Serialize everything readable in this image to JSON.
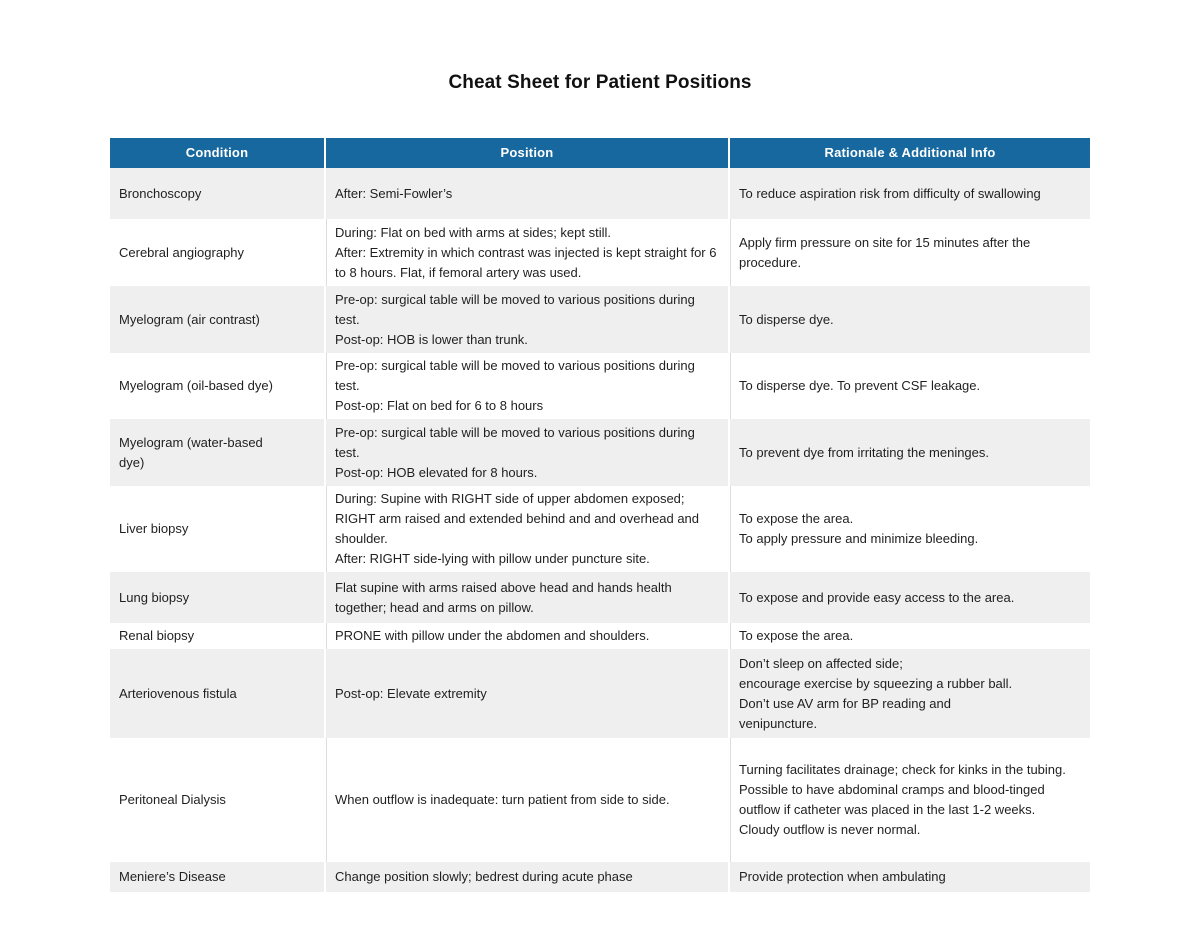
{
  "page": {
    "title": "Cheat Sheet for Patient Positions"
  },
  "colors": {
    "header_bg": "#17689f",
    "header_text": "#ffffff",
    "row_alt_bg": "#efefef",
    "row_bg": "#ffffff",
    "body_text": "#1f1f1f"
  },
  "table": {
    "columns": [
      "Condition",
      "Position",
      "Rationale & Additional Info"
    ],
    "rows": [
      {
        "condition": "Bronchoscopy",
        "position": [
          "After: Semi-Fowler’s"
        ],
        "rationale": [
          "To reduce aspiration risk from difficulty of swallowing"
        ]
      },
      {
        "condition": "Cerebral angiography",
        "position": [
          "During: Flat on bed with arms at sides; kept still.",
          "After: Extremity in which contrast was injected is kept straight for 6 to 8 hours. Flat, if femoral artery was used."
        ],
        "rationale": [
          "Apply firm pressure on site for 15 minutes after the procedure."
        ]
      },
      {
        "condition": "Myelogram (air contrast)",
        "position": [
          "Pre-op: surgical table will be moved to various positions during test.",
          "Post-op: HOB is lower than trunk."
        ],
        "rationale": [
          "To disperse dye."
        ]
      },
      {
        "condition": "Myelogram (oil-based dye)",
        "position": [
          "Pre-op: surgical table will be moved to various positions during test.",
          "Post-op: Flat on bed for 6 to 8 hours"
        ],
        "rationale": [
          "To disperse dye. To prevent CSF leakage."
        ]
      },
      {
        "condition": "Myelogram (water-based dye)",
        "position": [
          "Pre-op: surgical table will be moved to various positions during test.",
          "Post-op: HOB elevated for 8 hours."
        ],
        "rationale": [
          "To prevent dye from irritating the meninges."
        ]
      },
      {
        "condition": "Liver biopsy",
        "position": [
          "During: Supine with RIGHT side of upper abdomen exposed; RIGHT arm raised and extended behind and and overhead and shoulder.",
          "After: RIGHT side-lying with pillow under puncture site."
        ],
        "rationale": [
          "To expose the area.",
          "To apply pressure and minimize bleeding."
        ]
      },
      {
        "condition": "Lung biopsy",
        "position": [
          "Flat supine with arms raised above head and hands health together; head and arms on pillow."
        ],
        "rationale": [
          "To expose and provide easy access to the area."
        ]
      },
      {
        "condition": "Renal biopsy",
        "position": [
          "PRONE with pillow under the abdomen and shoulders."
        ],
        "rationale": [
          "To expose the area."
        ]
      },
      {
        "condition": "Arteriovenous fistula",
        "position": [
          "Post-op: Elevate extremity"
        ],
        "rationale": [
          "Don’t sleep on affected side;",
          "encourage exercise by squeezing a rubber ball.",
          "Don’t use AV arm for BP reading and",
          "venipuncture."
        ]
      },
      {
        "condition": "Peritoneal Dialysis",
        "position": [
          "When outflow is inadequate: turn patient from side to side."
        ],
        "rationale": [
          "Turning facilitates drainage; check for kinks in the tubing.",
          "Possible to have abdominal cramps and blood-tinged outflow if catheter was placed in the last 1-2 weeks.",
          "Cloudy outflow is never normal."
        ]
      },
      {
        "condition": "Meniere’s Disease",
        "position": [
          "Change position slowly; bedrest during acute phase"
        ],
        "rationale": [
          "Provide protection when ambulating"
        ]
      }
    ]
  }
}
